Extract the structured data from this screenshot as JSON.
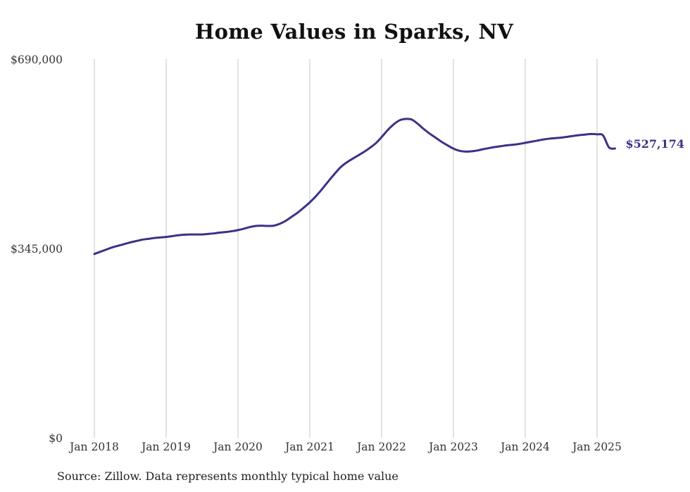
{
  "chart_data": {
    "type": "line",
    "title": "Home Values in Sparks, NV",
    "xlabel": "",
    "ylabel": "",
    "ylim": [
      0,
      690000
    ],
    "yticks": [
      0,
      345000,
      690000
    ],
    "ytick_labels": [
      "$0",
      "$345,000",
      "$690,000"
    ],
    "x_start": "2018-01",
    "x_end": "2025-04",
    "xticks": [
      "2018-01",
      "2019-01",
      "2020-01",
      "2021-01",
      "2022-01",
      "2023-01",
      "2024-01",
      "2025-01"
    ],
    "xtick_labels": [
      "Jan 2018",
      "Jan 2019",
      "Jan 2020",
      "Jan 2021",
      "Jan 2022",
      "Jan 2023",
      "Jan 2024",
      "Jan 2025"
    ],
    "grid": "vertical",
    "series": [
      {
        "color": "#3a3288",
        "x": [
          "2018-01",
          "2018-02",
          "2018-03",
          "2018-04",
          "2018-05",
          "2018-06",
          "2018-07",
          "2018-08",
          "2018-09",
          "2018-10",
          "2018-11",
          "2018-12",
          "2019-01",
          "2019-02",
          "2019-03",
          "2019-04",
          "2019-05",
          "2019-06",
          "2019-07",
          "2019-08",
          "2019-09",
          "2019-10",
          "2019-11",
          "2019-12",
          "2020-01",
          "2020-02",
          "2020-03",
          "2020-04",
          "2020-05",
          "2020-06",
          "2020-07",
          "2020-08",
          "2020-09",
          "2020-10",
          "2020-11",
          "2020-12",
          "2021-01",
          "2021-02",
          "2021-03",
          "2021-04",
          "2021-05",
          "2021-06",
          "2021-07",
          "2021-08",
          "2021-09",
          "2021-10",
          "2021-11",
          "2021-12",
          "2022-01",
          "2022-02",
          "2022-03",
          "2022-04",
          "2022-05",
          "2022-06",
          "2022-07",
          "2022-08",
          "2022-09",
          "2022-10",
          "2022-11",
          "2022-12",
          "2023-01",
          "2023-02",
          "2023-03",
          "2023-04",
          "2023-05",
          "2023-06",
          "2023-07",
          "2023-08",
          "2023-09",
          "2023-10",
          "2023-11",
          "2023-12",
          "2024-01",
          "2024-02",
          "2024-03",
          "2024-04",
          "2024-05",
          "2024-06",
          "2024-07",
          "2024-08",
          "2024-09",
          "2024-10",
          "2024-11",
          "2024-12",
          "2025-01",
          "2025-02",
          "2025-03",
          "2025-04"
        ],
        "values": [
          335000,
          339000,
          343000,
          347000,
          350000,
          353000,
          356000,
          358500,
          361000,
          362500,
          364000,
          365000,
          366000,
          367500,
          369000,
          370000,
          370500,
          370500,
          370500,
          371500,
          372500,
          374000,
          375000,
          376500,
          378500,
          381000,
          384000,
          386000,
          386500,
          386000,
          386500,
          390000,
          395500,
          403000,
          410500,
          419500,
          429000,
          440000,
          452500,
          466000,
          479000,
          491500,
          500500,
          507500,
          514000,
          520500,
          528000,
          536500,
          548000,
          560500,
          571000,
          578500,
          581000,
          580000,
          572500,
          563000,
          554500,
          547000,
          539500,
          533000,
          527000,
          523000,
          521500,
          522000,
          523500,
          526000,
          528000,
          530000,
          531500,
          533000,
          534000,
          535500,
          537500,
          539500,
          541500,
          543500,
          545000,
          546000,
          547000,
          548500,
          550000,
          551500,
          552500,
          553500,
          553000,
          551000,
          529000,
          527174
        ]
      }
    ],
    "end_label": "$527,174"
  },
  "footer": {
    "source": "Source: Zillow. Data represents monthly typical home value"
  }
}
